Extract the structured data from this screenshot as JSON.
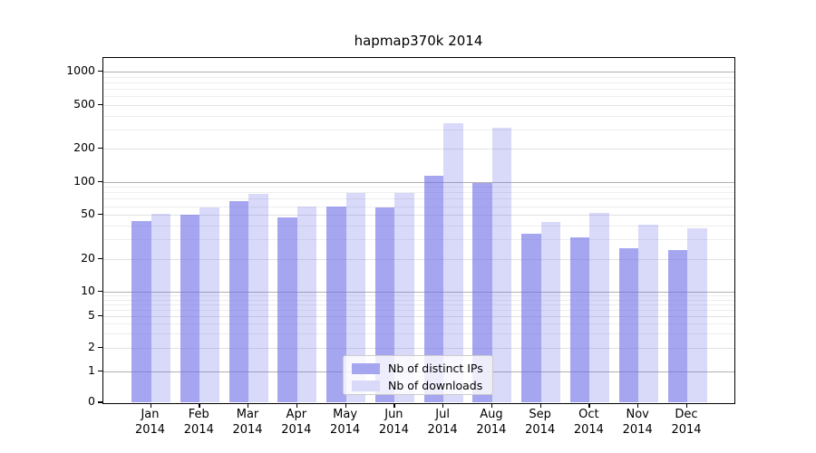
{
  "chart_data": {
    "type": "bar",
    "title": "hapmap370k 2014",
    "categories": [
      {
        "month": "Jan",
        "year": "2014"
      },
      {
        "month": "Feb",
        "year": "2014"
      },
      {
        "month": "Mar",
        "year": "2014"
      },
      {
        "month": "Apr",
        "year": "2014"
      },
      {
        "month": "May",
        "year": "2014"
      },
      {
        "month": "Jun",
        "year": "2014"
      },
      {
        "month": "Jul",
        "year": "2014"
      },
      {
        "month": "Aug",
        "year": "2014"
      },
      {
        "month": "Sep",
        "year": "2014"
      },
      {
        "month": "Oct",
        "year": "2014"
      },
      {
        "month": "Nov",
        "year": "2014"
      },
      {
        "month": "Dec",
        "year": "2014"
      }
    ],
    "series": [
      {
        "name": "Nb of distinct IPs",
        "base_color": "#6e6ee6",
        "alpha": 0.62,
        "values": [
          44,
          50,
          67,
          47,
          59,
          58,
          114,
          98,
          34,
          31,
          25,
          24
        ]
      },
      {
        "name": "Nb of downloads",
        "base_color": "#6e6ee6",
        "alpha": 0.26,
        "values": [
          51,
          58,
          78,
          59,
          79,
          79,
          341,
          310,
          43,
          52,
          41,
          38
        ]
      }
    ],
    "yscale": "symlog",
    "ylim": [
      0,
      1300
    ],
    "yticks": [
      0,
      1,
      2,
      5,
      10,
      20,
      50,
      100,
      200,
      500,
      1000
    ],
    "minor_yticks": [
      3,
      4,
      6,
      7,
      8,
      9,
      30,
      40,
      60,
      70,
      80,
      90,
      300,
      400,
      600,
      700,
      800,
      900
    ],
    "grid": true,
    "legend_location": "lower center",
    "colors": {
      "grid_major": "#b0b0b0",
      "grid_mid": "#e2e2e2",
      "grid_minor": "#ededed",
      "axis": "#000000",
      "text": "#000000"
    }
  }
}
